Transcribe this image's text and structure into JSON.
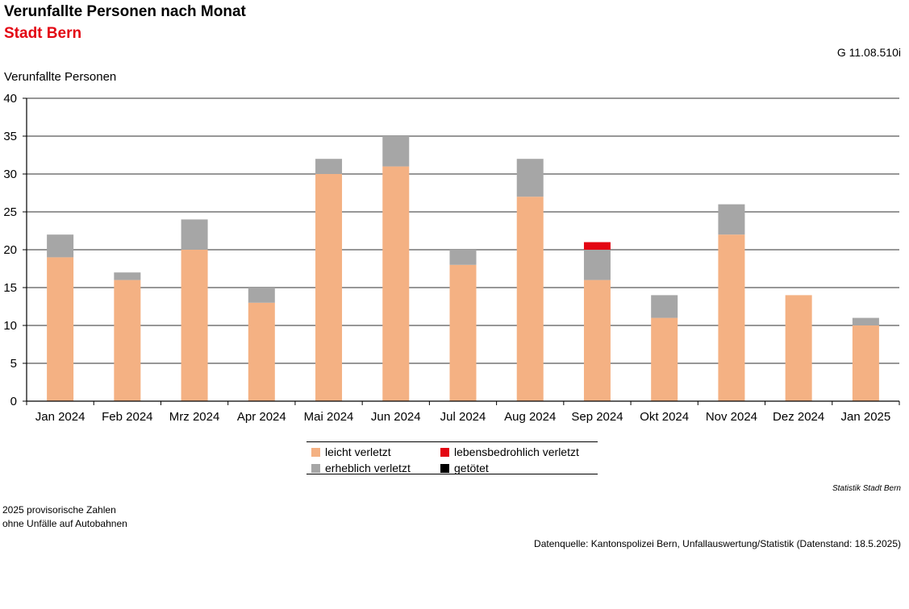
{
  "header": {
    "title": "Verunfallte Personen nach Monat",
    "subtitle": "Stadt Bern",
    "code": "G 11.08.510i"
  },
  "colors": {
    "leicht": "#f4b183",
    "erheblich": "#a6a6a6",
    "lebensbedrohlich": "#e30613",
    "getoetet": "#000000",
    "subtitle": "#e30613"
  },
  "chart_data": {
    "type": "bar",
    "stacked": true,
    "ylabel": "Verunfallte Personen",
    "xlabel": "",
    "ylim": [
      0,
      40
    ],
    "yticks": [
      0,
      5,
      10,
      15,
      20,
      25,
      30,
      35,
      40
    ],
    "grid": true,
    "legend_position": "bottom-center",
    "categories": [
      "Jan 2024",
      "Feb 2024",
      "Mrz 2024",
      "Apr 2024",
      "Mai 2024",
      "Jun 2024",
      "Jul 2024",
      "Aug 2024",
      "Sep 2024",
      "Okt 2024",
      "Nov 2024",
      "Dez 2024",
      "Jan 2025"
    ],
    "series": [
      {
        "name": "leicht verletzt",
        "color": "#f4b183",
        "values": [
          19,
          16,
          20,
          13,
          30,
          31,
          18,
          27,
          16,
          11,
          22,
          14,
          10
        ]
      },
      {
        "name": "erheblich verletzt",
        "color": "#a6a6a6",
        "values": [
          3,
          1,
          4,
          2,
          2,
          4,
          2,
          5,
          4,
          3,
          4,
          0,
          1
        ]
      },
      {
        "name": "lebensbedrohlich verletzt",
        "color": "#e30613",
        "values": [
          0,
          0,
          0,
          0,
          0,
          0,
          0,
          0,
          1,
          0,
          0,
          0,
          0
        ]
      },
      {
        "name": "getötet",
        "color": "#000000",
        "values": [
          0,
          0,
          0,
          0,
          0,
          0,
          0,
          0,
          0,
          0,
          0,
          0,
          0
        ]
      }
    ]
  },
  "legend": {
    "items": [
      {
        "label": "leicht verletzt",
        "color": "#f4b183"
      },
      {
        "label": "lebensbedrohlich verletzt",
        "color": "#e30613"
      },
      {
        "label": "erheblich verletzt",
        "color": "#a6a6a6"
      },
      {
        "label": "getötet",
        "color": "#000000"
      }
    ]
  },
  "footer": {
    "credit": "Statistik Stadt Bern",
    "note1": "2025 provisorische Zahlen",
    "note2": "ohne Unfälle auf Autobahnen",
    "source": "Datenquelle: Kantonspolizei Bern, Unfallauswertung/Statistik (Datenstand: 18.5.2025)"
  }
}
